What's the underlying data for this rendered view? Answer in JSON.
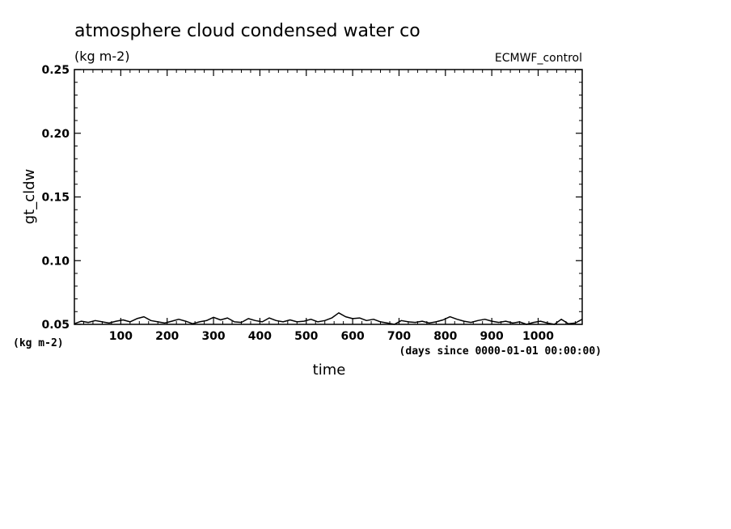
{
  "chart_data": {
    "type": "line",
    "title": "atmosphere cloud condensed water co",
    "units_label": "(kg m-2)",
    "dataset_label": "ECMWF_control",
    "xlabel": "time",
    "x_units": "(days since 0000-01-01 00:00:00)",
    "ylabel": "gt_cldw",
    "y_units": "(kg m-2)",
    "xlim": [
      0,
      1095
    ],
    "ylim": [
      0.05,
      0.25
    ],
    "x_ticks": [
      100,
      200,
      300,
      400,
      500,
      600,
      700,
      800,
      900,
      1000
    ],
    "x_tick_labels": [
      "100",
      "200",
      "300",
      "400",
      "500",
      "600",
      "700",
      "800",
      "900",
      "1000"
    ],
    "y_ticks": [
      0.05,
      0.1,
      0.15,
      0.2,
      0.25
    ],
    "y_tick_labels": [
      "0.05",
      "0.10",
      "0.15",
      "0.20",
      "0.25"
    ],
    "grid": false,
    "line_color": "#000000",
    "series": [
      {
        "x": [
          0,
          15,
          30,
          45,
          60,
          75,
          90,
          105,
          120,
          135,
          150,
          165,
          180,
          195,
          210,
          225,
          240,
          255,
          270,
          285,
          300,
          315,
          330,
          345,
          360,
          375,
          390,
          405,
          420,
          435,
          450,
          465,
          480,
          495,
          510,
          525,
          540,
          555,
          570,
          585,
          600,
          615,
          630,
          645,
          660,
          675,
          690,
          705,
          720,
          735,
          750,
          765,
          780,
          795,
          810,
          825,
          840,
          855,
          870,
          885,
          900,
          915,
          930,
          945,
          960,
          975,
          990,
          1005,
          1020,
          1035,
          1050,
          1065,
          1080,
          1095
        ],
        "values": [
          0.0505,
          0.0525,
          0.0515,
          0.053,
          0.052,
          0.051,
          0.0525,
          0.0535,
          0.052,
          0.0545,
          0.056,
          0.053,
          0.052,
          0.051,
          0.0525,
          0.054,
          0.0525,
          0.0505,
          0.052,
          0.053,
          0.0555,
          0.0535,
          0.055,
          0.052,
          0.0515,
          0.0545,
          0.053,
          0.052,
          0.055,
          0.053,
          0.052,
          0.0535,
          0.052,
          0.0525,
          0.054,
          0.052,
          0.053,
          0.055,
          0.059,
          0.056,
          0.0545,
          0.055,
          0.053,
          0.054,
          0.052,
          0.051,
          0.05,
          0.053,
          0.052,
          0.0515,
          0.0525,
          0.051,
          0.052,
          0.0535,
          0.056,
          0.054,
          0.0525,
          0.0515,
          0.053,
          0.054,
          0.0525,
          0.0515,
          0.0525,
          0.051,
          0.052,
          0.05,
          0.0515,
          0.0525,
          0.051,
          0.05,
          0.054,
          0.0505,
          0.051,
          0.054
        ]
      }
    ]
  }
}
